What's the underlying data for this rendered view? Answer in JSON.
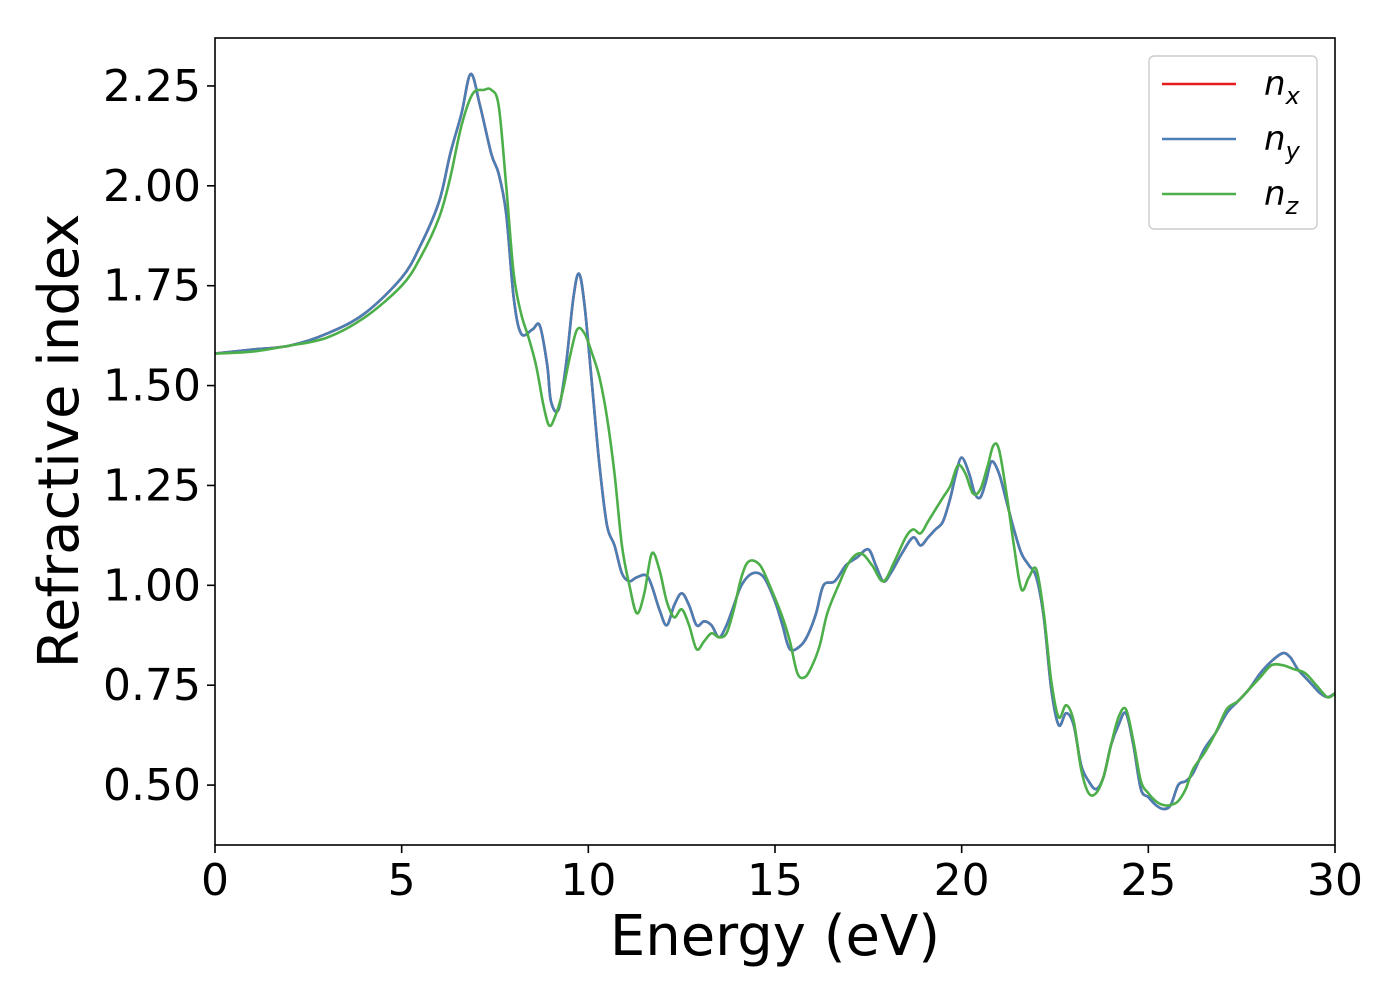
{
  "chart_data": {
    "type": "line",
    "xlabel": "Energy (eV)",
    "ylabel": "Refractive index",
    "xlim": [
      0,
      30
    ],
    "ylim": [
      0.35,
      2.37
    ],
    "xticks": [
      0,
      5,
      10,
      15,
      20,
      25,
      30
    ],
    "xtick_labels": [
      "0",
      "5",
      "10",
      "15",
      "20",
      "25",
      "30"
    ],
    "yticks": [
      0.5,
      0.75,
      1.0,
      1.25,
      1.5,
      1.75,
      2.0,
      2.25
    ],
    "ytick_labels": [
      "0.50",
      "0.75",
      "1.00",
      "1.25",
      "1.50",
      "1.75",
      "2.00",
      "2.25"
    ],
    "grid": false,
    "legend_position": "top-right",
    "series": [
      {
        "name": "n_x",
        "legend_base": "n",
        "legend_sub": "x",
        "color": "#e41a1c",
        "x": [
          0,
          1,
          2,
          3,
          4,
          5,
          5.5,
          6,
          6.3,
          6.6,
          6.85,
          7.1,
          7.4,
          7.6,
          7.8,
          8.0,
          8.2,
          8.5,
          8.7,
          8.9,
          9.0,
          9.2,
          9.4,
          9.6,
          9.75,
          9.9,
          10.1,
          10.3,
          10.5,
          10.7,
          10.9,
          11.1,
          11.3,
          11.6,
          11.9,
          12.1,
          12.3,
          12.5,
          12.7,
          12.9,
          13.1,
          13.3,
          13.5,
          13.7,
          13.9,
          14.1,
          14.4,
          14.7,
          15.0,
          15.2,
          15.4,
          15.7,
          15.9,
          16.1,
          16.3,
          16.6,
          16.9,
          17.2,
          17.5,
          17.7,
          17.9,
          18.1,
          18.4,
          18.7,
          18.9,
          19.1,
          19.3,
          19.5,
          19.7,
          19.85,
          20.0,
          20.2,
          20.35,
          20.5,
          20.65,
          20.8,
          21.0,
          21.2,
          21.4,
          21.6,
          21.8,
          22.0,
          22.2,
          22.4,
          22.6,
          22.8,
          23.0,
          23.2,
          23.4,
          23.6,
          23.8,
          24.0,
          24.2,
          24.4,
          24.6,
          24.8,
          25.0,
          25.2,
          25.4,
          25.6,
          25.8,
          26.0,
          26.2,
          26.5,
          26.8,
          27.1,
          27.4,
          27.7,
          28.0,
          28.3,
          28.6,
          28.8,
          29.0,
          29.2,
          29.4,
          29.6,
          29.8,
          30.0
        ],
        "values": [
          1.58,
          1.59,
          1.6,
          1.63,
          1.68,
          1.77,
          1.85,
          1.96,
          2.08,
          2.18,
          2.28,
          2.2,
          2.08,
          2.03,
          1.93,
          1.72,
          1.63,
          1.64,
          1.65,
          1.55,
          1.46,
          1.44,
          1.55,
          1.72,
          1.78,
          1.7,
          1.5,
          1.3,
          1.15,
          1.1,
          1.03,
          1.01,
          1.02,
          1.02,
          0.94,
          0.9,
          0.95,
          0.98,
          0.95,
          0.9,
          0.91,
          0.9,
          0.87,
          0.9,
          0.95,
          1.0,
          1.03,
          1.02,
          0.96,
          0.9,
          0.84,
          0.85,
          0.88,
          0.93,
          1.0,
          1.01,
          1.05,
          1.07,
          1.09,
          1.05,
          1.01,
          1.03,
          1.08,
          1.12,
          1.1,
          1.12,
          1.14,
          1.16,
          1.22,
          1.28,
          1.32,
          1.28,
          1.23,
          1.22,
          1.26,
          1.31,
          1.28,
          1.21,
          1.14,
          1.08,
          1.05,
          1.02,
          0.92,
          0.74,
          0.65,
          0.68,
          0.65,
          0.55,
          0.51,
          0.49,
          0.52,
          0.6,
          0.65,
          0.68,
          0.6,
          0.49,
          0.47,
          0.45,
          0.44,
          0.45,
          0.5,
          0.51,
          0.53,
          0.59,
          0.63,
          0.68,
          0.71,
          0.74,
          0.78,
          0.81,
          0.83,
          0.82,
          0.79,
          0.77,
          0.75,
          0.73,
          0.72,
          0.73
        ]
      },
      {
        "name": "n_y",
        "legend_base": "n",
        "legend_sub": "y",
        "color": "#4a7fb5",
        "x": [
          0,
          1,
          2,
          3,
          4,
          5,
          5.5,
          6,
          6.3,
          6.6,
          6.85,
          7.1,
          7.4,
          7.6,
          7.8,
          8.0,
          8.2,
          8.5,
          8.7,
          8.9,
          9.0,
          9.2,
          9.4,
          9.6,
          9.75,
          9.9,
          10.1,
          10.3,
          10.5,
          10.7,
          10.9,
          11.1,
          11.3,
          11.6,
          11.9,
          12.1,
          12.3,
          12.5,
          12.7,
          12.9,
          13.1,
          13.3,
          13.5,
          13.7,
          13.9,
          14.1,
          14.4,
          14.7,
          15.0,
          15.2,
          15.4,
          15.7,
          15.9,
          16.1,
          16.3,
          16.6,
          16.9,
          17.2,
          17.5,
          17.7,
          17.9,
          18.1,
          18.4,
          18.7,
          18.9,
          19.1,
          19.3,
          19.5,
          19.7,
          19.85,
          20.0,
          20.2,
          20.35,
          20.5,
          20.65,
          20.8,
          21.0,
          21.2,
          21.4,
          21.6,
          21.8,
          22.0,
          22.2,
          22.4,
          22.6,
          22.8,
          23.0,
          23.2,
          23.4,
          23.6,
          23.8,
          24.0,
          24.2,
          24.4,
          24.6,
          24.8,
          25.0,
          25.2,
          25.4,
          25.6,
          25.8,
          26.0,
          26.2,
          26.5,
          26.8,
          27.1,
          27.4,
          27.7,
          28.0,
          28.3,
          28.6,
          28.8,
          29.0,
          29.2,
          29.4,
          29.6,
          29.8,
          30.0
        ],
        "values": [
          1.58,
          1.59,
          1.6,
          1.63,
          1.68,
          1.77,
          1.85,
          1.96,
          2.08,
          2.18,
          2.28,
          2.2,
          2.08,
          2.03,
          1.93,
          1.72,
          1.63,
          1.64,
          1.65,
          1.55,
          1.46,
          1.44,
          1.55,
          1.72,
          1.78,
          1.7,
          1.5,
          1.3,
          1.15,
          1.1,
          1.03,
          1.01,
          1.02,
          1.02,
          0.94,
          0.9,
          0.95,
          0.98,
          0.95,
          0.9,
          0.91,
          0.9,
          0.87,
          0.9,
          0.95,
          1.0,
          1.03,
          1.02,
          0.96,
          0.9,
          0.84,
          0.85,
          0.88,
          0.93,
          1.0,
          1.01,
          1.05,
          1.07,
          1.09,
          1.05,
          1.01,
          1.03,
          1.08,
          1.12,
          1.1,
          1.12,
          1.14,
          1.16,
          1.22,
          1.28,
          1.32,
          1.28,
          1.23,
          1.22,
          1.26,
          1.31,
          1.28,
          1.21,
          1.14,
          1.08,
          1.05,
          1.02,
          0.92,
          0.74,
          0.65,
          0.68,
          0.65,
          0.55,
          0.51,
          0.49,
          0.52,
          0.6,
          0.65,
          0.68,
          0.6,
          0.49,
          0.47,
          0.45,
          0.44,
          0.45,
          0.5,
          0.51,
          0.53,
          0.59,
          0.63,
          0.68,
          0.71,
          0.74,
          0.78,
          0.81,
          0.83,
          0.82,
          0.79,
          0.77,
          0.75,
          0.73,
          0.72,
          0.73
        ]
      },
      {
        "name": "n_z",
        "legend_base": "n",
        "legend_sub": "z",
        "color": "#4daf4a",
        "x": [
          0,
          1,
          2,
          3,
          4,
          5,
          5.5,
          6,
          6.3,
          6.6,
          6.9,
          7.2,
          7.4,
          7.6,
          7.8,
          8.0,
          8.2,
          8.4,
          8.6,
          8.8,
          8.95,
          9.1,
          9.3,
          9.5,
          9.7,
          9.9,
          10.1,
          10.3,
          10.5,
          10.7,
          10.9,
          11.1,
          11.3,
          11.5,
          11.7,
          11.9,
          12.1,
          12.3,
          12.5,
          12.7,
          12.9,
          13.1,
          13.3,
          13.5,
          13.7,
          13.9,
          14.1,
          14.3,
          14.6,
          14.9,
          15.2,
          15.4,
          15.6,
          15.8,
          16.0,
          16.2,
          16.4,
          16.7,
          17.0,
          17.3,
          17.6,
          17.9,
          18.2,
          18.5,
          18.7,
          18.9,
          19.1,
          19.3,
          19.5,
          19.7,
          19.9,
          20.1,
          20.3,
          20.5,
          20.7,
          20.85,
          21.0,
          21.2,
          21.4,
          21.6,
          21.8,
          22.0,
          22.2,
          22.4,
          22.6,
          22.8,
          23.0,
          23.2,
          23.4,
          23.6,
          23.8,
          24.0,
          24.2,
          24.4,
          24.6,
          24.8,
          25.0,
          25.2,
          25.4,
          25.6,
          25.8,
          26.0,
          26.2,
          26.5,
          26.8,
          27.1,
          27.4,
          27.7,
          28.0,
          28.3,
          28.6,
          28.9,
          29.2,
          29.5,
          29.8,
          30.0
        ],
        "values": [
          1.58,
          1.585,
          1.6,
          1.62,
          1.67,
          1.75,
          1.82,
          1.92,
          2.02,
          2.15,
          2.23,
          2.24,
          2.24,
          2.2,
          2.0,
          1.78,
          1.68,
          1.62,
          1.55,
          1.45,
          1.4,
          1.42,
          1.48,
          1.57,
          1.64,
          1.63,
          1.58,
          1.52,
          1.42,
          1.28,
          1.1,
          1.0,
          0.93,
          0.98,
          1.08,
          1.04,
          0.96,
          0.92,
          0.94,
          0.9,
          0.84,
          0.86,
          0.88,
          0.87,
          0.88,
          0.94,
          1.02,
          1.06,
          1.05,
          0.99,
          0.92,
          0.86,
          0.78,
          0.77,
          0.8,
          0.85,
          0.93,
          1.0,
          1.06,
          1.08,
          1.05,
          1.01,
          1.06,
          1.12,
          1.14,
          1.13,
          1.16,
          1.19,
          1.22,
          1.25,
          1.3,
          1.28,
          1.23,
          1.24,
          1.3,
          1.35,
          1.34,
          1.23,
          1.1,
          0.99,
          1.02,
          1.04,
          0.93,
          0.76,
          0.67,
          0.7,
          0.66,
          0.54,
          0.48,
          0.48,
          0.52,
          0.6,
          0.67,
          0.69,
          0.61,
          0.51,
          0.48,
          0.46,
          0.45,
          0.45,
          0.46,
          0.49,
          0.54,
          0.58,
          0.63,
          0.69,
          0.71,
          0.74,
          0.77,
          0.8,
          0.8,
          0.79,
          0.78,
          0.75,
          0.72,
          0.73
        ]
      }
    ]
  }
}
